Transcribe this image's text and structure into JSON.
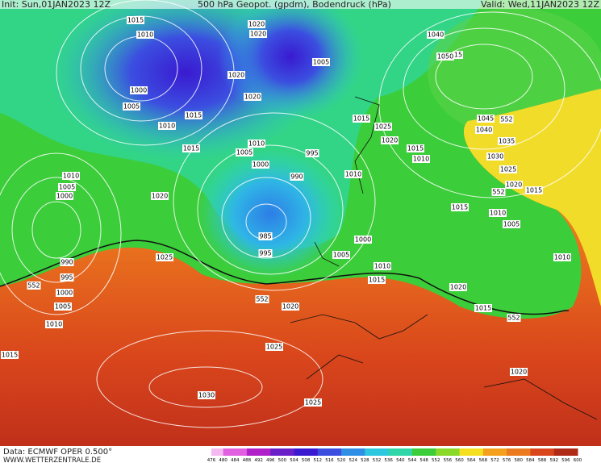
{
  "header": {
    "init": "Init: Sun,01JAN2023 12Z",
    "title": "500 hPa Geopot. (gpdm), Bodendruck (hPa)",
    "valid": "Valid: Wed,11JAN2023 12Z"
  },
  "isobar_labels": [
    1015,
    1010,
    1020,
    1020,
    1005,
    1040,
    1050,
    15,
    1020,
    1000,
    1005,
    1020,
    1010,
    1015,
    1015,
    1010,
    1005,
    1000,
    995,
    990,
    1015,
    1025,
    1020,
    1015,
    1010,
    1010,
    1045,
    552,
    1040,
    1035,
    1030,
    1025,
    1020,
    552,
    1015,
    1015,
    1010,
    1005,
    1010,
    1005,
    1000,
    1020,
    985,
    995,
    1000,
    1005,
    1025,
    990,
    995,
    552,
    1000,
    1005,
    1010,
    1010,
    1015,
    1020,
    1015,
    552,
    1010,
    552,
    1020,
    1025,
    1015,
    1020,
    1030,
    1025
  ],
  "legend": {
    "values": [
      476,
      480,
      484,
      488,
      492,
      496,
      500,
      504,
      508,
      512,
      516,
      520,
      524,
      528,
      532,
      536,
      540,
      544,
      548,
      552,
      556,
      560,
      564,
      568,
      572,
      576,
      580,
      584,
      588,
      592,
      596,
      600
    ]
  },
  "footer": {
    "source": "Data: ECMWF OPER 0.500°",
    "website": "WWW.WETTERZENTRALE.DE"
  }
}
